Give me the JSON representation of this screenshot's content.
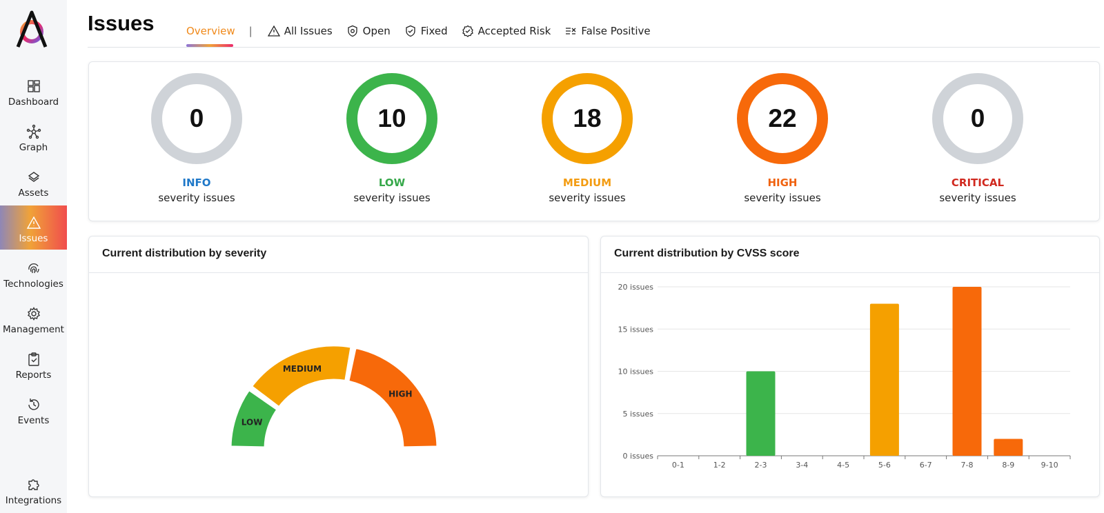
{
  "app": {
    "logo_letter": "A"
  },
  "sidebar": {
    "items": [
      {
        "label": "Dashboard",
        "icon": "dashboard-icon"
      },
      {
        "label": "Graph",
        "icon": "graph-icon"
      },
      {
        "label": "Assets",
        "icon": "layers-icon"
      },
      {
        "label": "Issues",
        "icon": "warning-icon",
        "active": true
      },
      {
        "label": "Technologies",
        "icon": "fingerprint-icon"
      },
      {
        "label": "Management",
        "icon": "gear-icon"
      },
      {
        "label": "Reports",
        "icon": "clipboard-check-icon"
      },
      {
        "label": "Events",
        "icon": "history-icon"
      },
      {
        "label": "Integrations",
        "icon": "puzzle-icon"
      }
    ]
  },
  "header": {
    "title": "Issues",
    "tabs": [
      {
        "label": "Overview",
        "active": true
      },
      {
        "label": "All Issues",
        "icon": "warning-icon"
      },
      {
        "label": "Open",
        "icon": "shield-open-icon"
      },
      {
        "label": "Fixed",
        "icon": "shield-check-icon"
      },
      {
        "label": "Accepted Risk",
        "icon": "badge-check-icon"
      },
      {
        "label": "False Positive",
        "icon": "list-x-icon"
      }
    ],
    "separator": "|"
  },
  "severity": {
    "subtitle": "severity issues",
    "items": [
      {
        "name": "INFO",
        "count": "0",
        "name_color": "#1f78c8",
        "ring_color": "#cfd3d8"
      },
      {
        "name": "LOW",
        "count": "10",
        "name_color": "#36a84a",
        "ring_color": "#3cb44b"
      },
      {
        "name": "MEDIUM",
        "count": "18",
        "name_color": "#f39c12",
        "ring_color": "#f5a000"
      },
      {
        "name": "HIGH",
        "count": "22",
        "name_color": "#f0620f",
        "ring_color": "#f7690a"
      },
      {
        "name": "CRITICAL",
        "count": "0",
        "name_color": "#d0281e",
        "ring_color": "#cfd3d8"
      }
    ]
  },
  "gauge_panel": {
    "title": "Current distribution by severity"
  },
  "bar_panel": {
    "title": "Current distribution by CVSS score"
  },
  "chart_data": [
    {
      "type": "pie",
      "style": "semicircle-gauge",
      "categories": [
        "LOW",
        "MEDIUM",
        "HIGH"
      ],
      "values": [
        10,
        18,
        22
      ],
      "colors": [
        "#3cb44b",
        "#f5a000",
        "#f7690a"
      ]
    },
    {
      "type": "bar",
      "categories": [
        "0-1",
        "1-2",
        "2-3",
        "3-4",
        "4-5",
        "5-6",
        "6-7",
        "7-8",
        "8-9",
        "9-10"
      ],
      "values": [
        0,
        0,
        10,
        0,
        0,
        18,
        0,
        20,
        2,
        0
      ],
      "colors": [
        "#3cb44b",
        "#3cb44b",
        "#3cb44b",
        "#3cb44b",
        "#f5a000",
        "#f5a000",
        "#f5a000",
        "#f7690a",
        "#f7690a",
        "#f7690a"
      ],
      "yticks": [
        "0 issues",
        "5 issues",
        "10 issues",
        "15 issues",
        "20 issues"
      ],
      "ytick_values": [
        0,
        5,
        10,
        15,
        20
      ],
      "ylim": [
        0,
        20
      ],
      "grid": true
    }
  ]
}
